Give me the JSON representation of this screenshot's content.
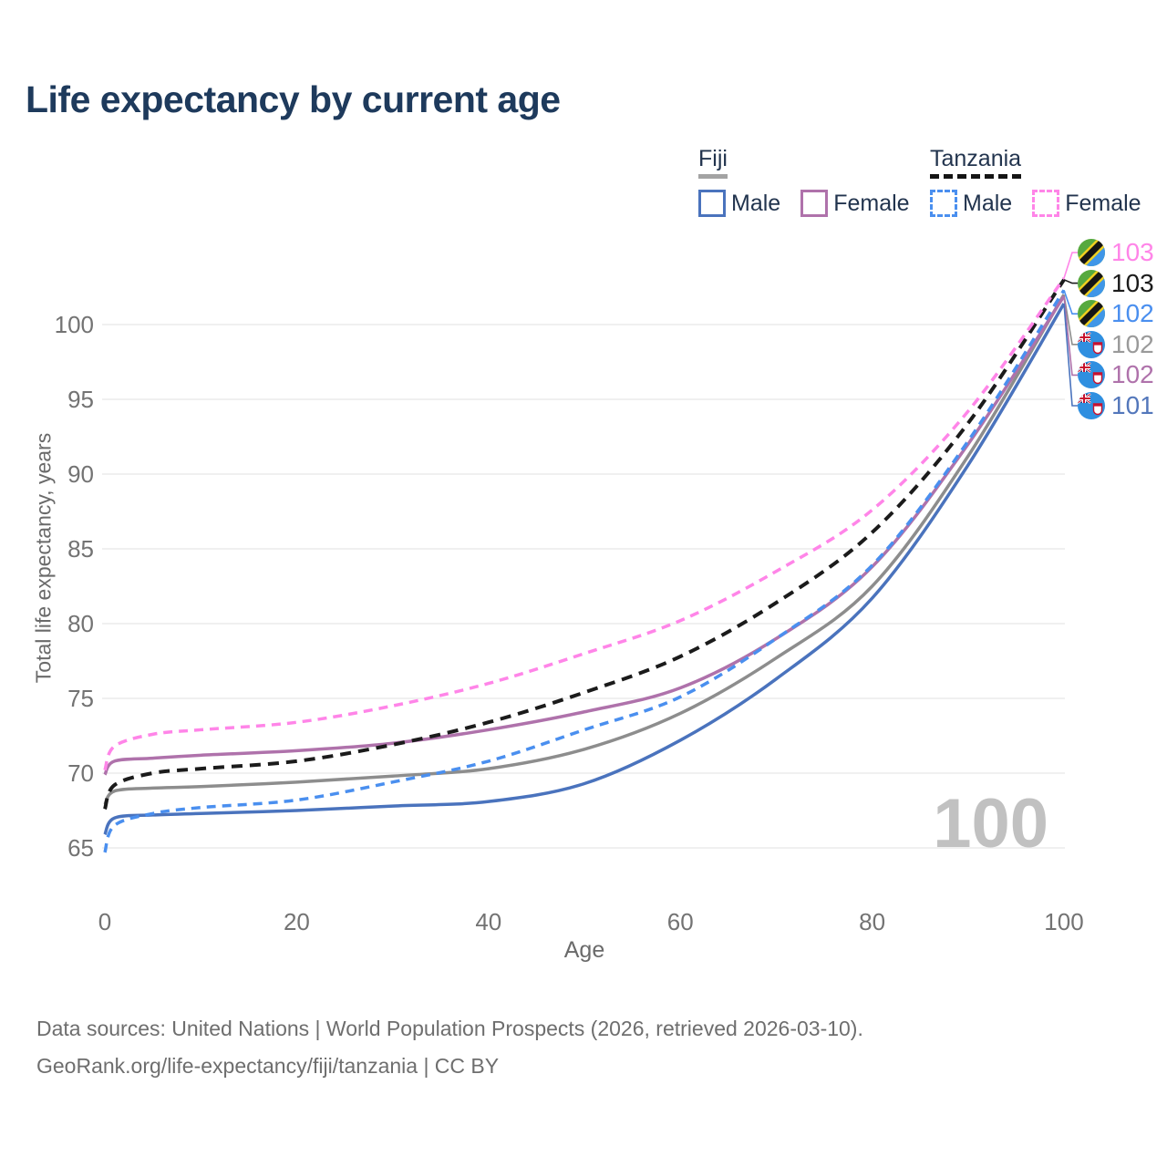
{
  "title": "Life expectancy by current age",
  "legend": {
    "fiji": {
      "label": "Fiji"
    },
    "tanzania": {
      "label": "Tanzania"
    },
    "male_label": "Male",
    "female_label": "Female"
  },
  "watermark": "100",
  "footer": {
    "line1": "Data sources: United Nations | World Population Prospects (2026, retrieved 2026-03-10).",
    "line2": "GeoRank.org/life-expectancy/fiji/tanzania | CC BY"
  },
  "colors": {
    "title": "#1e3a5c",
    "axis_text": "#737373",
    "grid": "#e8e8e8",
    "watermark": "#c1c1c1",
    "legend_text": "#22344e",
    "fiji_header_underline": "#a3a3a3",
    "tanzania_header_underline": "#141414"
  },
  "chart_data": {
    "type": "line",
    "title": "Life expectancy by current age",
    "xlabel": "Age",
    "ylabel": "Total life expectancy, years",
    "x_ticks": [
      0,
      20,
      40,
      60,
      80,
      100
    ],
    "y_ticks": [
      65,
      70,
      75,
      80,
      85,
      90,
      95,
      100
    ],
    "xlim": [
      0,
      100
    ],
    "ylim": [
      64,
      104
    ],
    "grid": "horizontal-only",
    "legend_position": "top-right",
    "ages": [
      0,
      1,
      5,
      10,
      20,
      30,
      40,
      50,
      60,
      70,
      80,
      90,
      100
    ],
    "series": [
      {
        "id": "fiji_total",
        "name": "Fiji (both sexes)",
        "country": "fiji",
        "sex": "total",
        "color": "#8d8d8d",
        "style": "solid",
        "width": 3.5,
        "values": [
          67.9,
          68.8,
          69.0,
          69.1,
          69.4,
          69.8,
          70.3,
          71.6,
          74.0,
          77.7,
          82.5,
          91.2,
          102.0
        ],
        "end_label": "102",
        "end_label_color": "#9a9a9a"
      },
      {
        "id": "fiji_female",
        "name": "Fiji Female",
        "country": "fiji",
        "sex": "female",
        "color": "#af72ab",
        "style": "solid",
        "width": 3.5,
        "values": [
          69.9,
          70.8,
          71.0,
          71.2,
          71.5,
          72.0,
          72.9,
          74.1,
          75.7,
          79.0,
          83.8,
          92.0,
          101.9
        ],
        "end_label": "102",
        "end_label_color": "#af72ab"
      },
      {
        "id": "fiji_male",
        "name": "Fiji Male",
        "country": "fiji",
        "sex": "male",
        "color": "#4a73bd",
        "style": "solid",
        "width": 3.5,
        "values": [
          65.9,
          67.0,
          67.2,
          67.3,
          67.5,
          67.8,
          68.1,
          69.3,
          72.2,
          76.3,
          81.7,
          90.6,
          101.4
        ],
        "end_label": "101",
        "end_label_color": "#5377bb"
      },
      {
        "id": "tanzania_total",
        "name": "Tanzania (both sexes)",
        "country": "tanzania",
        "sex": "total",
        "color": "#1b1b1b",
        "style": "dashed",
        "width": 4,
        "dash": "12 8",
        "values": [
          67.6,
          69.2,
          70.0,
          70.3,
          70.8,
          71.9,
          73.4,
          75.4,
          77.8,
          81.4,
          86.1,
          93.4,
          103.0
        ],
        "end_label": "103",
        "end_label_color": "#1b1b1b"
      },
      {
        "id": "tanzania_female",
        "name": "Tanzania Female",
        "country": "tanzania",
        "sex": "female",
        "color": "#ff85e8",
        "style": "dashed",
        "width": 3.5,
        "dash": "10 7",
        "values": [
          70.2,
          71.8,
          72.6,
          72.9,
          73.4,
          74.5,
          76.0,
          78.0,
          80.2,
          83.5,
          87.6,
          94.2,
          103.1
        ],
        "end_label": "103",
        "end_label_color": "#ff85e8"
      },
      {
        "id": "tanzania_male",
        "name": "Tanzania Male",
        "country": "tanzania",
        "sex": "male",
        "color": "#4a8fef",
        "style": "dashed",
        "width": 3.5,
        "dash": "10 7",
        "values": [
          64.7,
          66.5,
          67.3,
          67.7,
          68.2,
          69.4,
          70.8,
          72.9,
          75.1,
          79.0,
          83.9,
          92.2,
          102.3
        ],
        "end_label": "102",
        "end_label_color": "#4a8fef"
      }
    ],
    "end_label_order": [
      "tanzania_female",
      "tanzania_total",
      "tanzania_male",
      "fiji_total",
      "fiji_female",
      "fiji_male"
    ]
  }
}
